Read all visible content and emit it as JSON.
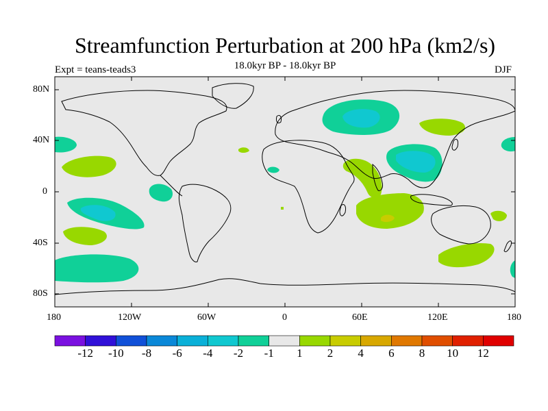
{
  "title": "Streamfunction Perturbation at 200 hPa (km2/s)",
  "subtitle": "18.0kyr BP - 18.0kyr BP",
  "experiment": "Expt = teans-teads3",
  "season": "DJF",
  "lat_labels": [
    "80N",
    "40N",
    "0",
    "40S",
    "80S"
  ],
  "lon_labels": [
    "180",
    "120W",
    "60W",
    "0",
    "60E",
    "120E",
    "180"
  ],
  "colorbar": {
    "labels": [
      "-12",
      "-10",
      "-8",
      "-6",
      "-4",
      "-2",
      "-1",
      "1",
      "2",
      "4",
      "6",
      "8",
      "10",
      "12"
    ],
    "colors": [
      "#7a10e0",
      "#3010d8",
      "#1050d8",
      "#0a88d8",
      "#0ab0d8",
      "#10c8d0",
      "#10d098",
      "#e8e8e8",
      "#98d800",
      "#c8cc00",
      "#d8a800",
      "#e07800",
      "#e04e00",
      "#e02000",
      "#e00000"
    ]
  },
  "chart_data": {
    "type": "contour-map",
    "projection": "cylindrical-equidistant",
    "lon_range": [
      -180,
      180
    ],
    "lat_range": [
      -90,
      90
    ],
    "fill_levels": [
      -12,
      -10,
      -8,
      -6,
      -4,
      -2,
      -1,
      1,
      2,
      4,
      6,
      8,
      10,
      12
    ],
    "features": [
      {
        "region": "central Asia",
        "center_lon": 53,
        "center_lat": 57,
        "level": "-4 to -2"
      },
      {
        "region": "east Asia / Tibet",
        "center_lon": 100,
        "center_lat": 27,
        "level": "-4 to -2"
      },
      {
        "region": "south Pacific",
        "center_lon": -143,
        "center_lat": -17,
        "level": "-4 to -2"
      },
      {
        "region": "Indian Ocean",
        "center_lon": 78,
        "center_lat": -20,
        "level": "1 to 4"
      },
      {
        "region": "southern ocean south of Australia",
        "center_lon": 138,
        "center_lat": -50,
        "level": "1 to 2"
      },
      {
        "region": "north Pacific",
        "center_lon": 135,
        "center_lat": 53,
        "level": "1 to 2"
      },
      {
        "region": "subtropical Pacific",
        "center_lon": -158,
        "center_lat": 24,
        "level": "1 to 2"
      },
      {
        "region": "southern ocean south Pacific",
        "center_lon": -155,
        "center_lat": -60,
        "level": "-2 to -1"
      }
    ]
  }
}
